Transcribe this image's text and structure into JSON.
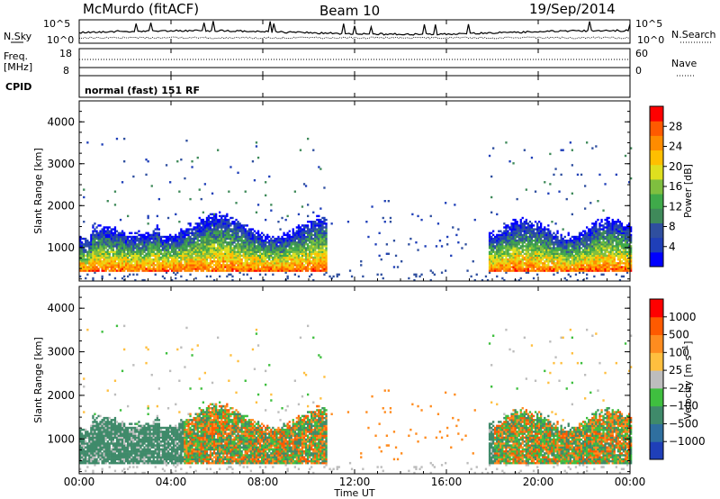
{
  "header": {
    "station": "McMurdo (fitACF)",
    "beam": "Beam 10",
    "date": "19/Sep/2014",
    "cpid_text": "normal (fast) 151 RF"
  },
  "side_labels": {
    "nsky": "N.Sky",
    "freq": "Freq.",
    "freq_unit": "[MHz]",
    "cpid": "CPID",
    "nsearch": "N.Search",
    "nave": "Nave"
  },
  "noise_panel": {
    "left_ticks": [
      "10^5",
      "10^0"
    ],
    "right_ticks": [
      "10^5",
      "10^0"
    ]
  },
  "freq_panel": {
    "left_ticks": [
      "18",
      "8"
    ],
    "right_ticks": [
      "60",
      "0"
    ]
  },
  "chart_data": [
    {
      "type": "heatmap",
      "ylabel": "Slant Range [km]",
      "ylim": [
        200,
        4500
      ],
      "xlim": [
        0,
        24
      ],
      "y_ticks": [
        "1000",
        "2000",
        "3000",
        "4000"
      ],
      "colorbar": {
        "label": "Power [dB]",
        "ticks": [
          "4",
          "8",
          "12",
          "16",
          "20",
          "24",
          "28"
        ],
        "colors": [
          "#0000ff",
          "#1f3fb8",
          "#2f4f9f",
          "#3f8a5a",
          "#3faa4a",
          "#7fbf3f",
          "#dfdf1f",
          "#ffbf00",
          "#ff8c00",
          "#ff5a00",
          "#ff0000"
        ]
      }
    },
    {
      "type": "heatmap",
      "ylabel": "Slant Range [km]",
      "ylim": [
        200,
        4500
      ],
      "xlim": [
        0,
        24
      ],
      "y_ticks": [
        "1000",
        "2000",
        "3000",
        "4000"
      ],
      "colorbar": {
        "label": "Velocity [m s^-1]",
        "ticks": [
          "1000",
          "500",
          "100",
          "25",
          "-25",
          "-100",
          "-500",
          "-1000"
        ],
        "colors": [
          "#1f3fb8",
          "#2f6f9f",
          "#3f8a6a",
          "#3fbf3f",
          "#bdbdbd",
          "#ffbf3f",
          "#ff8c1f",
          "#ff5a00",
          "#ff0000"
        ]
      }
    }
  ],
  "x_axis": {
    "xlabel": "Time UT",
    "tick_labels": [
      "00:00",
      "04:00",
      "08:00",
      "12:00",
      "16:00",
      "20:00",
      "00:00"
    ]
  }
}
